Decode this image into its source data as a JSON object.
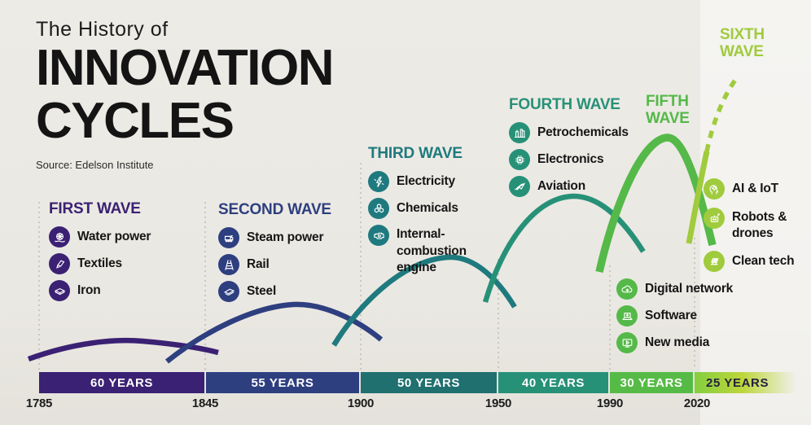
{
  "header": {
    "eyebrow": "The History of",
    "title_line1": "INNOVATION",
    "title_line2": "CYCLES",
    "source": "Source: Edelson Institute"
  },
  "colors": {
    "background": "#edebe6",
    "text": "#1a1a1a",
    "grid_dash": "#b5b2aa",
    "bar_text": "#ffffff",
    "last_bar_text": "#26203f",
    "last_bar_fade_start": "#85ce3f",
    "last_bar_fade_mid": "#bdd63a"
  },
  "chart_data": {
    "type": "line",
    "title": "The History of Innovation Cycles",
    "source": "Edelson Institute",
    "x_ticks": [
      "1785",
      "1845",
      "1900",
      "1950",
      "1990",
      "2020"
    ],
    "grid": "dashed-vertical-at-wave-boundaries",
    "legend_position": "none",
    "description": "Six successive S-curve innovation waves, each shorter and peaking higher than the last; sixth wave projected as dashed line",
    "series": [
      {
        "name": "FIRST WAVE",
        "color": "#3b2173",
        "duration_label": "60 YEARS",
        "duration_years": 60,
        "start_year": 1785,
        "end_year": 1845,
        "peak_rel_height": 0.18,
        "items": [
          {
            "label": "Water power",
            "icon": "water-wheel-icon"
          },
          {
            "label": "Textiles",
            "icon": "textiles-icon"
          },
          {
            "label": "Iron",
            "icon": "iron-icon"
          }
        ]
      },
      {
        "name": "SECOND WAVE",
        "color": "#2e3f80",
        "duration_label": "55 YEARS",
        "duration_years": 55,
        "start_year": 1845,
        "end_year": 1900,
        "peak_rel_height": 0.35,
        "items": [
          {
            "label": "Steam power",
            "icon": "steam-engine-icon"
          },
          {
            "label": "Rail",
            "icon": "rail-icon"
          },
          {
            "label": "Steel",
            "icon": "steel-icon"
          }
        ]
      },
      {
        "name": "THIRD WAVE",
        "color": "#1e7a7e",
        "duration_label": "50 YEARS",
        "duration_years": 50,
        "start_year": 1900,
        "end_year": 1950,
        "peak_rel_height": 0.52,
        "items": [
          {
            "label": "Electricity",
            "icon": "electricity-icon"
          },
          {
            "label": "Chemicals",
            "icon": "chemicals-icon"
          },
          {
            "label": "Internal-combustion engine",
            "icon": "engine-icon"
          }
        ]
      },
      {
        "name": "FOURTH WAVE",
        "color": "#279178",
        "duration_label": "40 YEARS",
        "duration_years": 40,
        "start_year": 1950,
        "end_year": 1990,
        "peak_rel_height": 0.72,
        "items": [
          {
            "label": "Petrochemicals",
            "icon": "petrochemicals-icon"
          },
          {
            "label": "Electronics",
            "icon": "electronics-icon"
          },
          {
            "label": "Aviation",
            "icon": "aviation-icon"
          }
        ]
      },
      {
        "name": "FIFTH WAVE",
        "color": "#54b948",
        "duration_label": "30 YEARS",
        "duration_years": 30,
        "start_year": 1990,
        "end_year": 2020,
        "peak_rel_height": 0.92,
        "items": [
          {
            "label": "Digital network",
            "icon": "digital-network-icon"
          },
          {
            "label": "Software",
            "icon": "software-icon"
          },
          {
            "label": "New media",
            "icon": "new-media-icon"
          }
        ]
      },
      {
        "name": "SIXTH WAVE",
        "color": "#a0cb3c",
        "duration_label": "25 YEARS",
        "duration_years": 25,
        "start_year": 2020,
        "end_year": null,
        "peak_rel_height": 1.0,
        "projected": true,
        "items": [
          {
            "label": "AI & IoT",
            "icon": "ai-iot-icon"
          },
          {
            "label": "Robots & drones",
            "icon": "robots-drones-icon"
          },
          {
            "label": "Clean tech",
            "icon": "clean-tech-icon"
          }
        ]
      }
    ]
  }
}
